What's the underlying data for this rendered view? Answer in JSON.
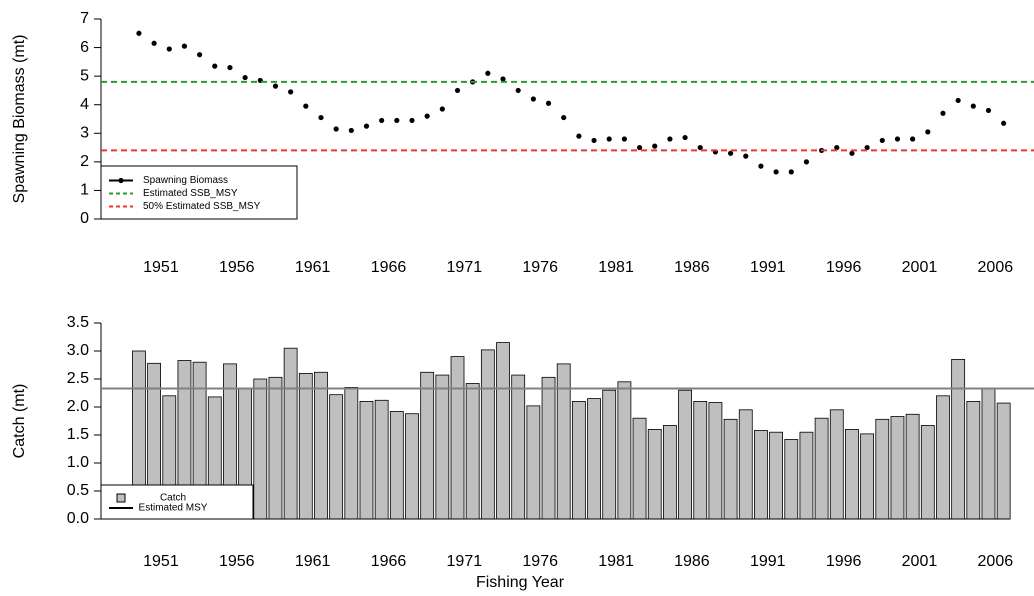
{
  "chart_data": [
    {
      "type": "scatter",
      "y_label": "Spawning Biomass (mt)",
      "x": [
        1951,
        1952,
        1953,
        1954,
        1955,
        1956,
        1957,
        1958,
        1959,
        1960,
        1961,
        1962,
        1963,
        1964,
        1965,
        1966,
        1967,
        1968,
        1969,
        1970,
        1971,
        1972,
        1973,
        1974,
        1975,
        1976,
        1977,
        1978,
        1979,
        1980,
        1981,
        1982,
        1983,
        1984,
        1985,
        1986,
        1987,
        1988,
        1989,
        1990,
        1991,
        1992,
        1993,
        1994,
        1995,
        1996,
        1997,
        1998,
        1999,
        2000,
        2001,
        2002,
        2003,
        2004,
        2005,
        2006,
        2007,
        2008
      ],
      "series": [
        {
          "name": "Spawning Biomass",
          "color": "#000000",
          "values": [
            6.5,
            6.15,
            5.95,
            6.05,
            5.75,
            5.35,
            5.3,
            4.95,
            4.85,
            4.65,
            4.45,
            3.95,
            3.55,
            3.15,
            3.1,
            3.25,
            3.45,
            3.45,
            3.45,
            3.6,
            3.85,
            4.5,
            4.8,
            5.1,
            4.9,
            4.5,
            4.2,
            4.05,
            3.55,
            2.9,
            2.75,
            2.8,
            2.8,
            2.5,
            2.55,
            2.8,
            2.85,
            2.5,
            2.35,
            2.3,
            2.2,
            1.85,
            1.65,
            1.65,
            2.0,
            2.4,
            2.5,
            2.3,
            2.5,
            2.75,
            2.8,
            2.8,
            3.05,
            3.7,
            4.15,
            3.95,
            3.8,
            3.35
          ]
        }
      ],
      "reference_lines": [
        {
          "name": "Estimated SSB_MSY",
          "value": 4.8,
          "color": "#2e9a2e",
          "dashed": true
        },
        {
          "name": "50% Estimated SSB_MSY",
          "value": 2.4,
          "color": "#ee3333",
          "dashed": true
        }
      ],
      "xlim": [
        1948.5,
        2010
      ],
      "xticks": [
        1951,
        1956,
        1961,
        1966,
        1971,
        1976,
        1981,
        1986,
        1991,
        1996,
        2001,
        2006
      ],
      "ylim": [
        0,
        7
      ],
      "yticks": [
        0,
        1,
        2,
        3,
        4,
        5,
        6,
        7
      ],
      "legend": "bottom left"
    },
    {
      "type": "bar",
      "x_label": "Fishing Year",
      "y_label": "Catch (mt)",
      "x": [
        1951,
        1952,
        1953,
        1954,
        1955,
        1956,
        1957,
        1958,
        1959,
        1960,
        1961,
        1962,
        1963,
        1964,
        1965,
        1966,
        1967,
        1968,
        1969,
        1970,
        1971,
        1972,
        1973,
        1974,
        1975,
        1976,
        1977,
        1978,
        1979,
        1980,
        1981,
        1982,
        1983,
        1984,
        1985,
        1986,
        1987,
        1988,
        1989,
        1990,
        1991,
        1992,
        1993,
        1994,
        1995,
        1996,
        1997,
        1998,
        1999,
        2000,
        2001,
        2002,
        2003,
        2004,
        2005,
        2006,
        2007,
        2008
      ],
      "series": [
        {
          "name": "Catch",
          "color": "#bfbfbf",
          "values": [
            3.0,
            2.78,
            2.2,
            2.83,
            2.8,
            2.18,
            2.77,
            2.33,
            2.5,
            2.53,
            3.05,
            2.6,
            2.62,
            2.22,
            2.35,
            2.1,
            2.12,
            1.92,
            1.88,
            2.62,
            2.57,
            2.9,
            2.42,
            3.02,
            3.15,
            2.57,
            2.02,
            2.53,
            2.77,
            2.1,
            2.15,
            2.3,
            2.45,
            1.8,
            1.6,
            1.67,
            2.3,
            2.1,
            2.08,
            1.78,
            1.95,
            1.58,
            1.55,
            1.42,
            1.55,
            1.8,
            1.95,
            1.6,
            1.52,
            1.78,
            1.83,
            1.87,
            1.67,
            2.2,
            2.85,
            2.1,
            2.33,
            2.07
          ]
        }
      ],
      "reference_lines": [
        {
          "name": "Estimated MSY",
          "value": 2.33,
          "color": "#808080",
          "dashed": false
        }
      ],
      "xlim": [
        1948.5,
        2010
      ],
      "xticks": [
        1951,
        1956,
        1961,
        1966,
        1971,
        1976,
        1981,
        1986,
        1991,
        1996,
        2001,
        2006
      ],
      "ylim": [
        0,
        3.5
      ],
      "yticks": [
        {
          "value": 0,
          "label": "0.0"
        },
        {
          "value": 0.5,
          "label": "0.5"
        },
        {
          "value": 1,
          "label": "1.0"
        },
        {
          "value": 1.5,
          "label": "1.5"
        },
        {
          "value": 2,
          "label": "2.0"
        },
        {
          "value": 2.5,
          "label": "2.5"
        },
        {
          "value": 3,
          "label": "3.0"
        },
        {
          "value": 3.5,
          "label": "3.5"
        }
      ],
      "legend": "bottom left"
    }
  ]
}
